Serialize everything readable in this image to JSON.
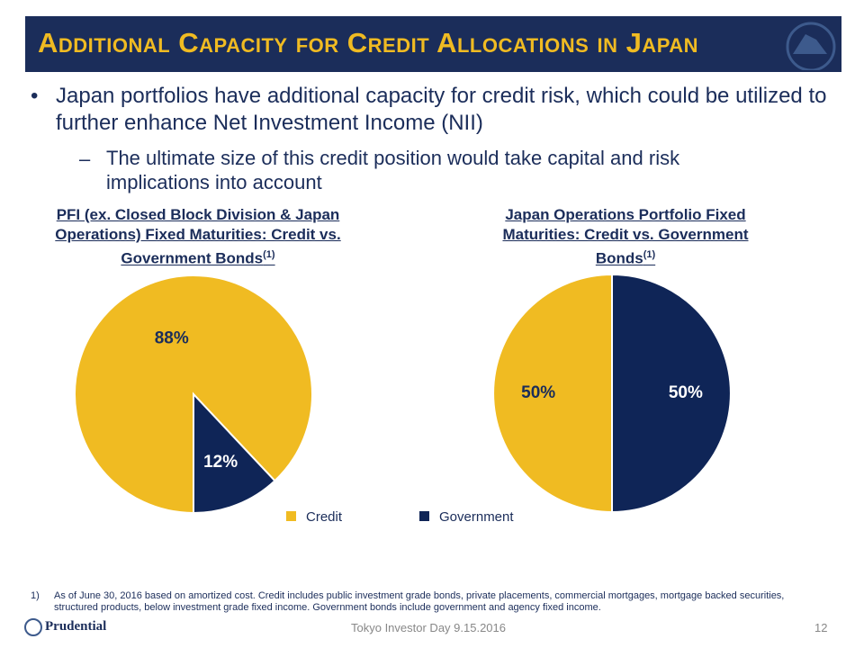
{
  "header": {
    "title": "Additional Capacity for Credit Allocations in Japan"
  },
  "bullets": [
    {
      "text": "Japan portfolios have additional capacity for credit risk, which could be utilized to further enhance Net Investment Income (NII)",
      "sub": "The ultimate size of this credit position would take capital and risk implications into account"
    }
  ],
  "chart_data": [
    {
      "type": "pie",
      "title": "PFI (ex. Closed Block Division & Japan Operations) Fixed Maturities: Credit vs. Government Bonds",
      "title_note": "(1)",
      "values": [
        88,
        12
      ],
      "value_labels": [
        "88%",
        "12%"
      ]
    },
    {
      "type": "pie",
      "title": "Japan Operations Portfolio Fixed Maturities: Credit vs. Government Bonds",
      "title_note": "(1)",
      "values": [
        50,
        50
      ],
      "value_labels": [
        "50%",
        "50%"
      ]
    }
  ],
  "legend": {
    "labels": [
      "Credit",
      "Government"
    ],
    "colors": [
      "#f0bb22",
      "#0f2557"
    ]
  },
  "footnote": {
    "marker": "1)",
    "text": "As of June 30, 2016 based on amortized cost. Credit includes public investment grade bonds, private placements, commercial mortgages, mortgage backed securities, structured products, below investment grade fixed income. Government bonds include government and agency fixed income."
  },
  "footer": {
    "company": "Prudential",
    "event": "Tokyo Investor Day 9.15.2016",
    "page": "12"
  }
}
